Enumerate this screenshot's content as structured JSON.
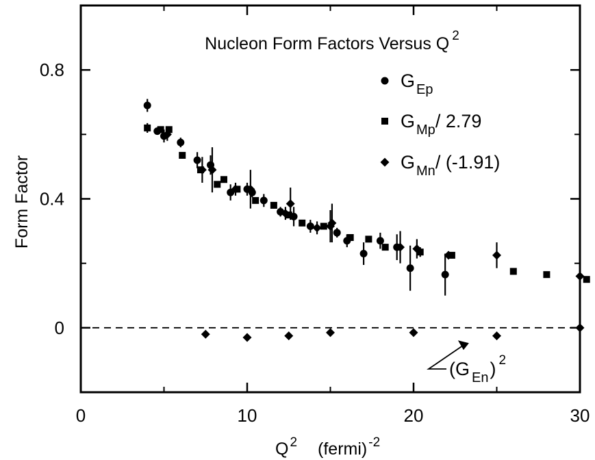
{
  "chart_data": {
    "type": "scatter",
    "title": "Nucleon Form Factors Versus Q",
    "title_sup": "2",
    "xlabel": "Q",
    "xlabel_sup": "2",
    "xlabel_unit": "(fermi)",
    "xlabel_unit_sup": "-2",
    "ylabel": "Form Factor",
    "xlim": [
      0,
      30
    ],
    "ylim": [
      -0.2,
      1.0
    ],
    "xticks": [
      0,
      10,
      20,
      30
    ],
    "yticks": [
      0,
      0.4,
      0.8
    ],
    "xtick_labels": [
      "0",
      "10",
      "20",
      "30"
    ],
    "ytick_labels": [
      "0",
      "0.4",
      "0.8"
    ],
    "grid": false,
    "legend_position": "top-right",
    "reference_line": {
      "y": 0,
      "style": "dashed"
    },
    "annotation": {
      "text_base": "(G",
      "text_sub": "En",
      "text_close": ")",
      "text_sup": "2",
      "points_to": {
        "x": 23.0,
        "y": -0.02
      }
    },
    "series": [
      {
        "name_base": "G",
        "name_sub": "Ep",
        "name_suffix": "",
        "marker": "circle",
        "points": [
          {
            "x": 4.0,
            "y": 0.69,
            "err": 0.02
          },
          {
            "x": 4.6,
            "y": 0.61,
            "err": 0.01
          },
          {
            "x": 5.0,
            "y": 0.595,
            "err": 0.02
          },
          {
            "x": 6.0,
            "y": 0.575,
            "err": 0.015
          },
          {
            "x": 7.0,
            "y": 0.52,
            "err": 0.025
          },
          {
            "x": 7.8,
            "y": 0.505,
            "err": 0.03
          },
          {
            "x": 9.0,
            "y": 0.42,
            "err": 0.025
          },
          {
            "x": 10.0,
            "y": 0.43,
            "err": 0.02
          },
          {
            "x": 10.3,
            "y": 0.42,
            "err": 0.015
          },
          {
            "x": 11.0,
            "y": 0.395,
            "err": 0.02
          },
          {
            "x": 12.0,
            "y": 0.36,
            "err": 0.015
          },
          {
            "x": 12.8,
            "y": 0.345,
            "err": 0.03
          },
          {
            "x": 13.8,
            "y": 0.315,
            "err": 0.02
          },
          {
            "x": 15.4,
            "y": 0.295,
            "err": 0.015
          },
          {
            "x": 16.0,
            "y": 0.27,
            "err": 0.02
          },
          {
            "x": 17.0,
            "y": 0.23,
            "err": 0.035
          },
          {
            "x": 18.0,
            "y": 0.27,
            "err": 0.025
          },
          {
            "x": 19.0,
            "y": 0.25,
            "err": 0.04
          },
          {
            "x": 19.8,
            "y": 0.185,
            "err": 0.07
          },
          {
            "x": 21.9,
            "y": 0.165,
            "err": 0.065
          }
        ]
      },
      {
        "name_base": "G",
        "name_sub": "Mp",
        "name_suffix": "/ 2.79",
        "marker": "square",
        "points": [
          {
            "x": 4.0,
            "y": 0.62,
            "err": 0.015
          },
          {
            "x": 4.8,
            "y": 0.615,
            "err": 0.01
          },
          {
            "x": 5.3,
            "y": 0.615,
            "err": 0.01
          },
          {
            "x": 6.1,
            "y": 0.535,
            "err": 0.01
          },
          {
            "x": 7.2,
            "y": 0.49,
            "err": 0.01
          },
          {
            "x": 8.2,
            "y": 0.445,
            "err": 0.01
          },
          {
            "x": 8.6,
            "y": 0.46,
            "err": 0.01
          },
          {
            "x": 9.4,
            "y": 0.43,
            "err": 0.01
          },
          {
            "x": 10.5,
            "y": 0.395,
            "err": 0.01
          },
          {
            "x": 11.6,
            "y": 0.38,
            "err": 0.01
          },
          {
            "x": 12.5,
            "y": 0.35,
            "err": 0.01
          },
          {
            "x": 13.3,
            "y": 0.325,
            "err": 0.01
          },
          {
            "x": 14.6,
            "y": 0.315,
            "err": 0.01
          },
          {
            "x": 16.2,
            "y": 0.28,
            "err": 0.01
          },
          {
            "x": 17.3,
            "y": 0.275,
            "err": 0.01
          },
          {
            "x": 18.3,
            "y": 0.25,
            "err": 0.01
          },
          {
            "x": 20.4,
            "y": 0.235,
            "err": 0.015
          },
          {
            "x": 22.3,
            "y": 0.225,
            "err": 0.01
          },
          {
            "x": 26.0,
            "y": 0.175,
            "err": 0.01
          },
          {
            "x": 28.0,
            "y": 0.165,
            "err": 0.01
          },
          {
            "x": 30.4,
            "y": 0.15,
            "err": 0.01
          }
        ]
      },
      {
        "name_base": "G",
        "name_sub": "Mn",
        "name_suffix": "/ (-1.91)",
        "marker": "diamond",
        "points": [
          {
            "x": 5.2,
            "y": 0.6,
            "err": 0.02
          },
          {
            "x": 7.3,
            "y": 0.49,
            "err": 0.04
          },
          {
            "x": 7.9,
            "y": 0.49,
            "err": 0.07
          },
          {
            "x": 9.3,
            "y": 0.43,
            "err": 0.02
          },
          {
            "x": 10.2,
            "y": 0.43,
            "err": 0.06
          },
          {
            "x": 12.3,
            "y": 0.355,
            "err": 0.02
          },
          {
            "x": 12.6,
            "y": 0.385,
            "err": 0.05
          },
          {
            "x": 14.2,
            "y": 0.31,
            "err": 0.02
          },
          {
            "x": 15.0,
            "y": 0.315,
            "err": 0.05
          },
          {
            "x": 15.1,
            "y": 0.325,
            "err": 0.06
          },
          {
            "x": 19.2,
            "y": 0.25,
            "err": 0.05
          },
          {
            "x": 20.2,
            "y": 0.245,
            "err": 0.03
          },
          {
            "x": 22.1,
            "y": 0.225,
            "err": 0.01
          },
          {
            "x": 25.0,
            "y": 0.225,
            "err": 0.04
          },
          {
            "x": 30.0,
            "y": 0.16,
            "err": 0.01
          }
        ]
      },
      {
        "name_base": "G",
        "name_sub": "En",
        "name_suffix": "",
        "marker": "diamond",
        "points": [
          {
            "x": 7.5,
            "y": -0.02,
            "err": 0
          },
          {
            "x": 10.0,
            "y": -0.03,
            "err": 0
          },
          {
            "x": 12.5,
            "y": -0.025,
            "err": 0
          },
          {
            "x": 15.0,
            "y": -0.015,
            "err": 0
          },
          {
            "x": 20.0,
            "y": -0.015,
            "err": 0
          },
          {
            "x": 25.0,
            "y": -0.025,
            "err": 0
          },
          {
            "x": 30.0,
            "y": 0.0,
            "err": 0.2
          }
        ]
      }
    ]
  }
}
